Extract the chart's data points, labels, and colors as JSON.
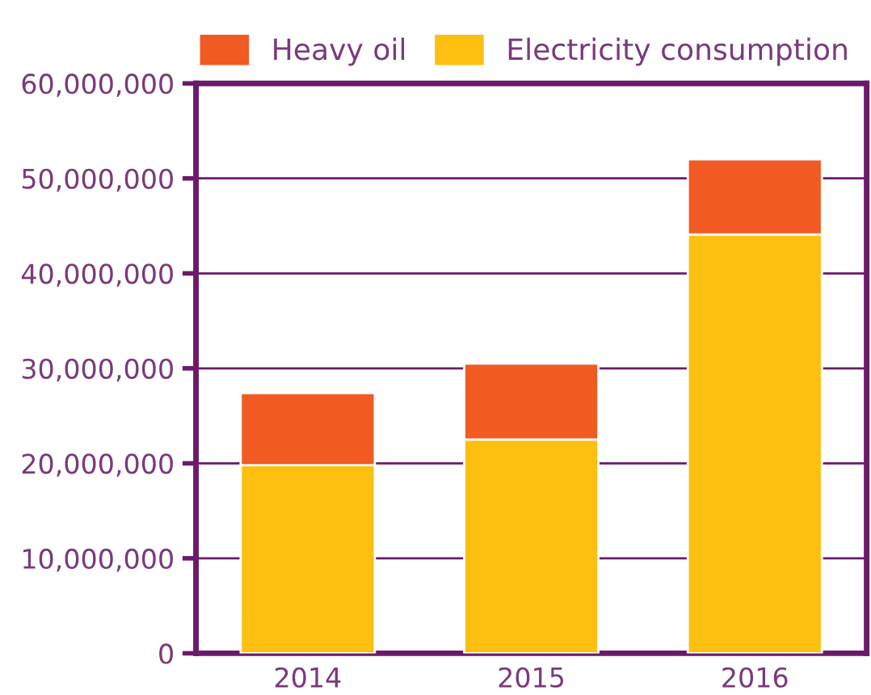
{
  "chart_data": {
    "type": "bar",
    "stacked": true,
    "categories": [
      "2014",
      "2015",
      "2016"
    ],
    "series": [
      {
        "name": "Electricity consumption",
        "color": "#fdc010",
        "values": [
          19800000,
          22500000,
          44100000
        ]
      },
      {
        "name": "Heavy oil",
        "color": "#f15a22",
        "values": [
          7600000,
          8000000,
          7900000
        ]
      }
    ],
    "ylim": [
      0,
      60000000
    ],
    "yticks": [
      0,
      {
        "value": 10000000,
        "label": "10,000,000"
      },
      {
        "value": 20000000,
        "label": "20,000,000"
      },
      {
        "value": 30000000,
        "label": "30,000,000"
      },
      {
        "value": 40000000,
        "label": "40,000,000"
      },
      {
        "value": 50000000,
        "label": "50,000,000"
      },
      {
        "value": 60000000,
        "label": "60,000,000"
      }
    ],
    "grid": "y",
    "legend": "top right"
  }
}
